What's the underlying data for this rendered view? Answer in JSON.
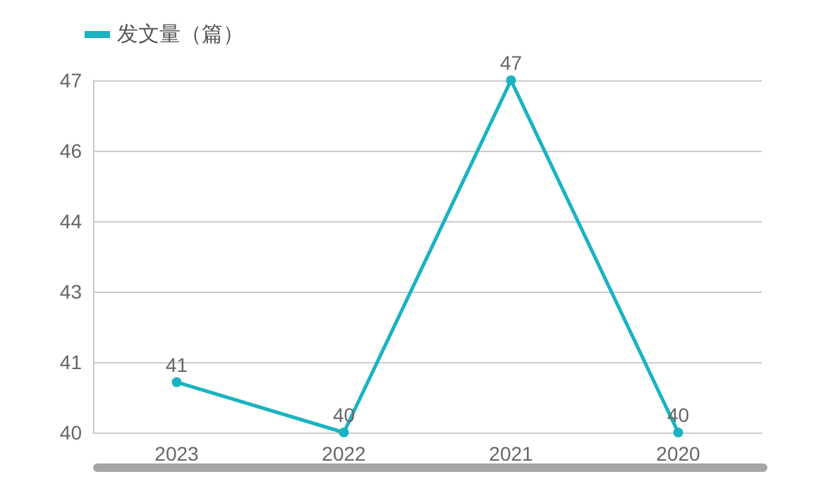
{
  "chart_data": {
    "type": "line",
    "categories": [
      "2023",
      "2022",
      "2021",
      "2020"
    ],
    "series": [
      {
        "name": "发文量（篇）",
        "color": "#1ab3c1",
        "values": [
          41,
          40,
          47,
          40
        ]
      }
    ],
    "ylim": [
      40,
      47
    ],
    "yticks": [
      40,
      {
        "value": 41.4,
        "label": "41"
      },
      {
        "value": 42.8,
        "label": "43"
      },
      {
        "value": 44.2,
        "label": "44"
      },
      {
        "value": 45.6,
        "label": "46"
      },
      47
    ],
    "grid": "y",
    "legend": "top left",
    "marker": "circle",
    "line_style": "solid",
    "data_labels": true
  }
}
